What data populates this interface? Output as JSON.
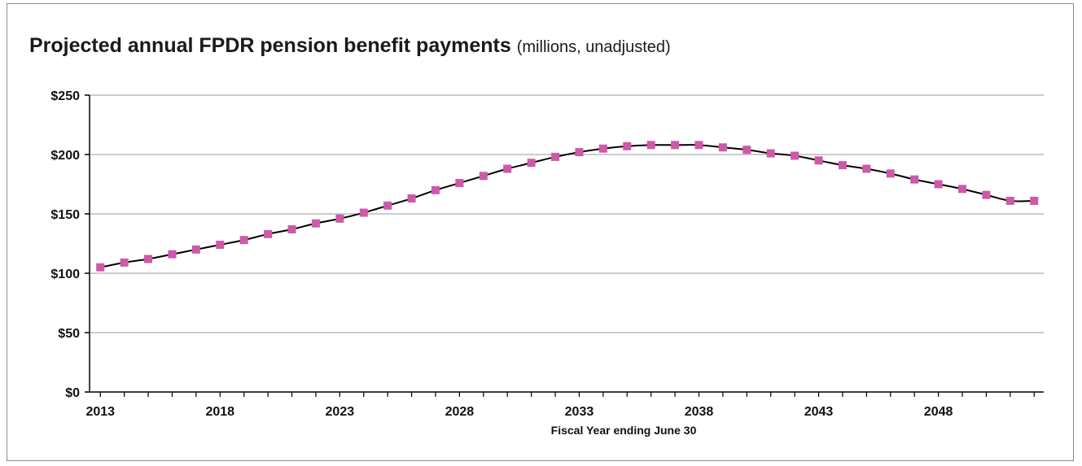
{
  "chart_data": {
    "type": "line",
    "title": "Projected annual FPDR pension benefit payments",
    "subtitle": "(millions, unadjusted)",
    "xlabel": "Fiscal Year ending June 30",
    "ylabel": "",
    "ylim": [
      0,
      250
    ],
    "xlim": [
      2013,
      2052
    ],
    "y_ticks": [
      "$0",
      "$50",
      "$100",
      "$150",
      "$200",
      "$250"
    ],
    "y_tick_values": [
      0,
      50,
      100,
      150,
      200,
      250
    ],
    "x_ticks": [
      "2013",
      "2018",
      "2023",
      "2028",
      "2033",
      "2038",
      "2043",
      "2048"
    ],
    "x_tick_values": [
      2013,
      2018,
      2023,
      2028,
      2033,
      2038,
      2043,
      2048
    ],
    "grid": true,
    "legend": "none",
    "colors": {
      "line": "#000000",
      "marker": "#cc5aa8",
      "grid": "#9a9a9a",
      "axis": "#000000"
    },
    "series": [
      {
        "x": [
          2013,
          2014,
          2015,
          2016,
          2017,
          2018,
          2019,
          2020,
          2021,
          2022,
          2023,
          2024,
          2025,
          2026,
          2027,
          2028,
          2029,
          2030,
          2031,
          2032,
          2033,
          2034,
          2035,
          2036,
          2037,
          2038,
          2039,
          2040,
          2041,
          2042,
          2043,
          2044,
          2045,
          2046,
          2047,
          2048,
          2049,
          2050,
          2051,
          2052
        ],
        "values": [
          105,
          109,
          112,
          116,
          120,
          124,
          128,
          133,
          137,
          142,
          146,
          151,
          157,
          163,
          170,
          176,
          182,
          188,
          193,
          198,
          202,
          205,
          207,
          208,
          208,
          208,
          206,
          204,
          201,
          199,
          195,
          191,
          188,
          184,
          179,
          175,
          171,
          166,
          161,
          161
        ]
      }
    ]
  }
}
